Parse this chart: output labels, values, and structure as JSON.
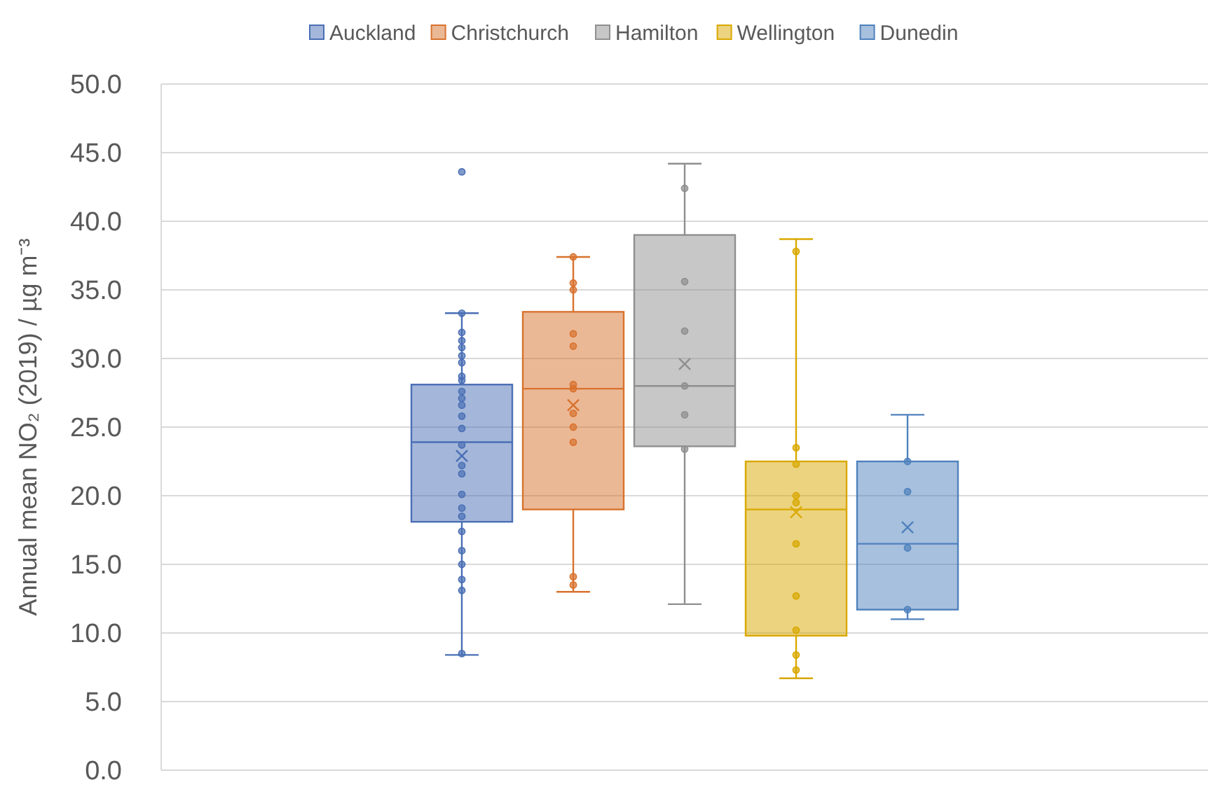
{
  "chart_data": {
    "type": "box",
    "ylabel": "Annual mean NO₂ (2019) / µg m⁻³",
    "categories": [
      null
    ],
    "ylim": [
      0,
      50
    ],
    "yticks": [
      {
        "value": 0,
        "label": "0.0"
      },
      {
        "value": 5,
        "label": "5.0"
      },
      {
        "value": 10,
        "label": "10.0"
      },
      {
        "value": 15,
        "label": "15.0"
      },
      {
        "value": 20,
        "label": "20.0"
      },
      {
        "value": 25,
        "label": "25.0"
      },
      {
        "value": 30,
        "label": "30.0"
      },
      {
        "value": 35,
        "label": "35.0"
      },
      {
        "value": 40,
        "label": "40.0"
      },
      {
        "value": 45,
        "label": "45.0"
      },
      {
        "value": 50,
        "label": "50.0"
      }
    ],
    "grid": "y",
    "legend": "top",
    "tick_labels": "y",
    "marker": "circle",
    "series": [
      {
        "name": "Auckland",
        "color": "#4a6fb5",
        "boxes": [
          {
            "low": 8.4,
            "q1": 18.1,
            "median": 23.9,
            "q3": 28.1,
            "high": 33.3,
            "mean": 22.9,
            "outliers": [
              43.6
            ]
          }
        ]
      },
      {
        "name": "Christchurch",
        "color": "#d8722e",
        "boxes": [
          {
            "low": 13.0,
            "q1": 19.0,
            "median": 27.8,
            "q3": 33.4,
            "high": 37.4,
            "mean": 26.6
          }
        ]
      },
      {
        "name": "Hamilton",
        "color": "#8f8f8f",
        "boxes": [
          {
            "low": 12.1,
            "q1": 23.6,
            "median": 28.0,
            "q3": 39.0,
            "high": 44.2,
            "mean": 29.6
          }
        ]
      },
      {
        "name": "Wellington",
        "color": "#d9a800",
        "boxes": [
          {
            "low": 6.7,
            "q1": 9.8,
            "median": 19.0,
            "q3": 22.5,
            "high": 38.7,
            "mean": 18.8
          }
        ]
      },
      {
        "name": "Dunedin",
        "color": "#4f81bd",
        "boxes": [
          {
            "low": 11.0,
            "q1": 11.7,
            "median": 16.5,
            "q3": 22.5,
            "high": 25.9,
            "mean": 17.7
          }
        ]
      },
      {
        "type": "scatter",
        "color": "#4a6fb5",
        "x": [
          null,
          null,
          null,
          null,
          null,
          null,
          null,
          null,
          null,
          null,
          null,
          null,
          null,
          null,
          null,
          null,
          null,
          null,
          null,
          null,
          null,
          null,
          null,
          null,
          null
        ],
        "values": [
          33.3,
          31.9,
          31.3,
          30.8,
          30.2,
          29.7,
          28.7,
          28.4,
          27.6,
          27.1,
          26.6,
          25.8,
          24.9,
          23.7,
          22.2,
          21.6,
          20.1,
          19.1,
          18.5,
          17.4,
          16.0,
          15.0,
          13.9,
          13.1,
          8.5
        ]
      },
      {
        "type": "scatter",
        "color": "#d8722e",
        "x": [
          null,
          null,
          null,
          null,
          null,
          null,
          null,
          null,
          null,
          null,
          null,
          null
        ],
        "values": [
          37.4,
          35.5,
          35.0,
          31.8,
          30.9,
          28.1,
          27.8,
          26.0,
          25.0,
          23.9,
          14.1,
          13.5
        ]
      },
      {
        "type": "scatter",
        "color": "#8f8f8f",
        "x": [
          null,
          null,
          null,
          null,
          null,
          null
        ],
        "values": [
          42.4,
          35.6,
          32.0,
          28.0,
          25.9,
          23.4
        ]
      },
      {
        "type": "scatter",
        "color": "#d9a800",
        "x": [
          null,
          null,
          null,
          null,
          null,
          null,
          null,
          null,
          null,
          null
        ],
        "values": [
          37.8,
          23.5,
          22.3,
          20.0,
          19.5,
          16.5,
          12.7,
          10.2,
          8.4,
          7.3
        ]
      },
      {
        "type": "scatter",
        "color": "#4f81bd",
        "x": [
          null,
          null,
          null,
          null
        ],
        "values": [
          22.5,
          20.3,
          16.2,
          11.7
        ]
      }
    ]
  }
}
